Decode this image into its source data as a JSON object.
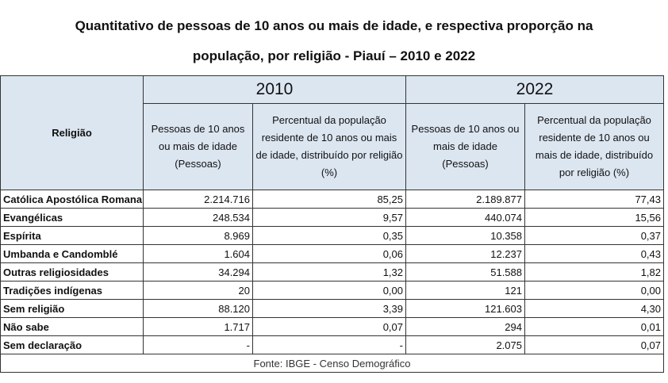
{
  "header": {
    "title_lines": [
      "Quantitativo de pessoas de 10 anos ou mais de idade, e respectiva proporção na",
      "população, por religião - Piauí – 2010 e 2022"
    ]
  },
  "table": {
    "religion_header": "Religião",
    "years": [
      "2010",
      "2022"
    ],
    "subheaders": [
      "Pessoas de 10 anos ou mais de idade (Pessoas)",
      "Percentual da população residente de 10 anos ou mais de idade, distribuído por religião (%)",
      "Pessoas de 10 anos ou mais de idade (Pessoas)",
      "Percentual da população residente de 10 anos ou mais de idade, distribuído por religião (%)"
    ],
    "rows": [
      [
        "Católica Apostólica Romana",
        "2.214.716",
        "85,25",
        "2.189.877",
        "77,43"
      ],
      [
        "Evangélicas",
        "248.534",
        "9,57",
        "440.074",
        "15,56"
      ],
      [
        "Espírita",
        "8.969",
        "0,35",
        "10.358",
        "0,37"
      ],
      [
        "Umbanda e Candomblé",
        "1.604",
        "0,06",
        "12.237",
        "0,43"
      ],
      [
        "Outras religiosidades",
        "34.294",
        "1,32",
        "51.588",
        "1,82"
      ],
      [
        "Tradições indígenas",
        "20",
        "0,00",
        "121",
        "0,00"
      ],
      [
        "Sem religião",
        "88.120",
        "3,39",
        "121.603",
        "4,30"
      ],
      [
        "Não sabe",
        "1.717",
        "0,07",
        "294",
        "0,01"
      ],
      [
        "Sem declaração",
        "-",
        "-",
        "2.075",
        "0,07"
      ]
    ],
    "source": "Fonte: IBGE - Censo Demográfico"
  }
}
